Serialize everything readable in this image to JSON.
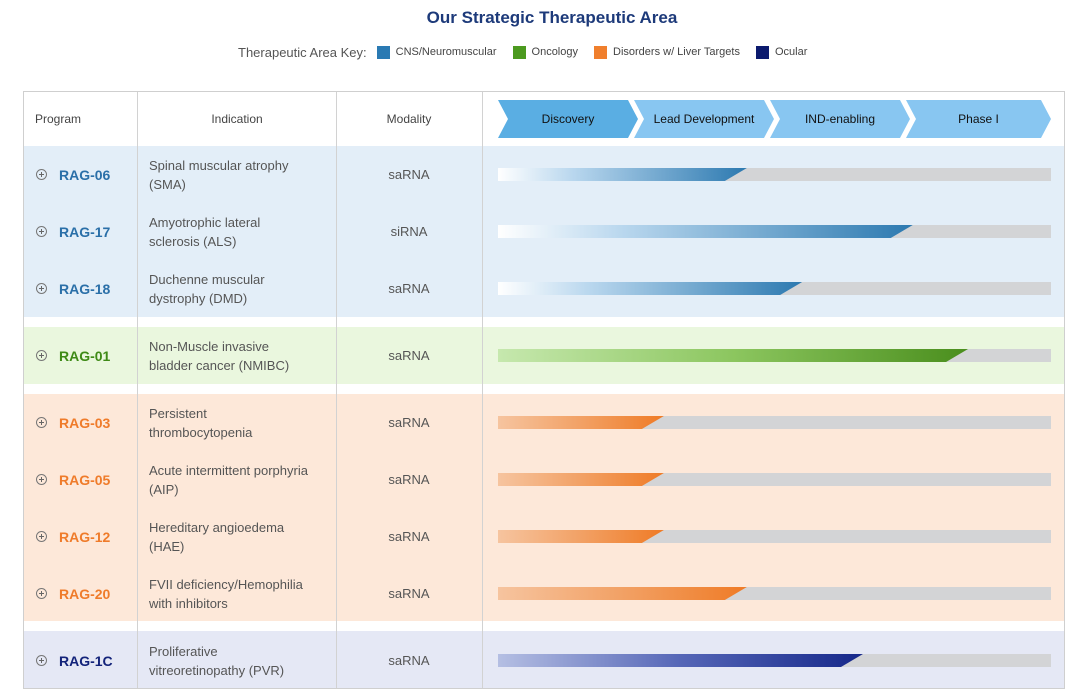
{
  "title": "Our Strategic Therapeutic Area",
  "key": {
    "label": "Therapeutic Area Key:",
    "items": [
      {
        "label": "CNS/Neuromuscular",
        "color": "#2a7ab3"
      },
      {
        "label": "Oncology",
        "color": "#4c9a1f"
      },
      {
        "label": "Disorders w/ Liver Targets",
        "color": "#f07f2d"
      },
      {
        "label": "Ocular",
        "color": "#0b1a6e"
      }
    ]
  },
  "columns": {
    "program": "Program",
    "indication": "Indication",
    "modality": "Modality"
  },
  "stages": [
    "Discovery",
    "Lead Development",
    "IND-enabling",
    "Phase I"
  ],
  "rows": [
    {
      "program": "RAG-06",
      "ind1": "Spinal muscular atrophy",
      "ind2": "(SMA)",
      "modality": "saRNA",
      "progress": 0.45
    },
    {
      "program": "RAG-17",
      "ind1": "Amyotrophic lateral",
      "ind2": "sclerosis (ALS)",
      "modality": "siRNA",
      "progress": 0.75
    },
    {
      "program": "RAG-18",
      "ind1": "Duchenne muscular",
      "ind2": "dystrophy (DMD)",
      "modality": "saRNA",
      "progress": 0.55
    },
    {
      "program": "RAG-01",
      "ind1": "Non-Muscle invasive",
      "ind2": "bladder cancer (NMIBC)",
      "modality": "saRNA",
      "progress": 0.85
    },
    {
      "program": "RAG-03",
      "ind1": "Persistent",
      "ind2": "thrombocytopenia",
      "modality": "saRNA",
      "progress": 0.3
    },
    {
      "program": "RAG-05",
      "ind1": "Acute intermittent porphyria",
      "ind2": "(AIP)",
      "modality": "saRNA",
      "progress": 0.3
    },
    {
      "program": "RAG-12",
      "ind1": "Hereditary angioedema",
      "ind2": "(HAE)",
      "modality": "saRNA",
      "progress": 0.3
    },
    {
      "program": "RAG-20",
      "ind1": "FVII deficiency/Hemophilia",
      "ind2": "with inhibitors",
      "modality": "saRNA",
      "progress": 0.45
    },
    {
      "program": "RAG-1C",
      "ind1": "Proliferative",
      "ind2": "vitreoretinopathy (PVR)",
      "modality": "saRNA",
      "progress": 0.66
    }
  ]
}
